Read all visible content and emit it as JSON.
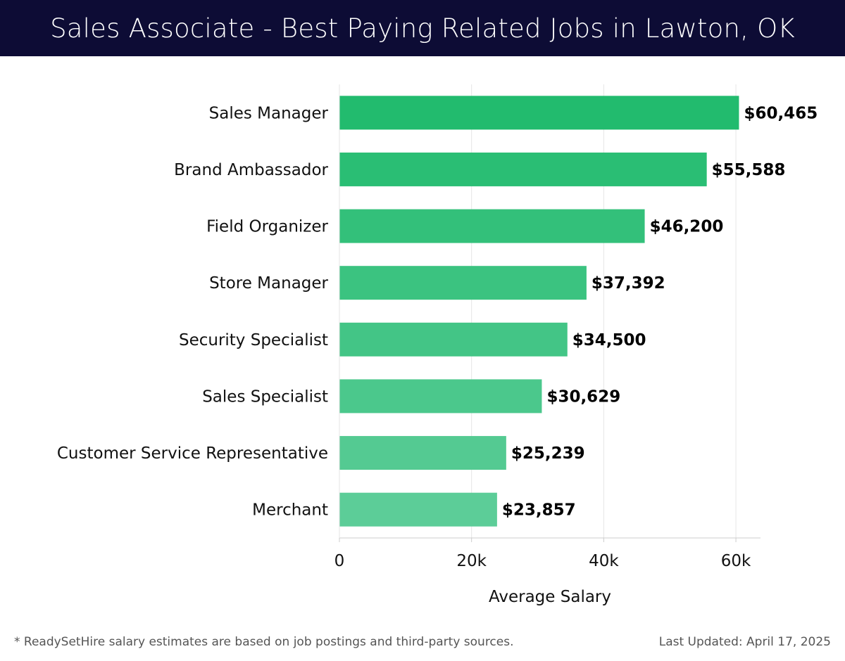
{
  "header": {
    "title": "Sales Associate - Best Paying Related Jobs in Lawton, OK"
  },
  "chart_data": {
    "type": "bar",
    "orientation": "horizontal",
    "title": "Sales Associate - Best Paying Related Jobs in Lawton, OK",
    "xlabel": "Average Salary",
    "ylabel": "",
    "categories": [
      "Sales Manager",
      "Brand Ambassador",
      "Field Organizer",
      "Store Manager",
      "Security Specialist",
      "Sales Specialist",
      "Customer Service Representative",
      "Merchant"
    ],
    "values": [
      60465,
      55588,
      46200,
      37392,
      34500,
      30629,
      25239,
      23857
    ],
    "value_labels": [
      "$60,465",
      "$55,588",
      "$46,200",
      "$37,392",
      "$34,500",
      "$30,629",
      "$25,239",
      "$23,857"
    ],
    "xlim": [
      0,
      63800
    ],
    "xticks": [
      0,
      20000,
      40000,
      60000
    ],
    "xtick_labels": [
      "0",
      "20k",
      "40k",
      "60k"
    ],
    "grid": true,
    "colors": {
      "bar_top": "#22bb6e",
      "bar_bottom": "#5ccd98",
      "grid": "#e6e6e6",
      "axis": "#cccccc",
      "label": "#111111",
      "value_label": "#000000"
    }
  },
  "footer": {
    "note": "* ReadySetHire salary estimates are based on job postings and third-party sources.",
    "updated": "Last Updated: April 17, 2025"
  }
}
